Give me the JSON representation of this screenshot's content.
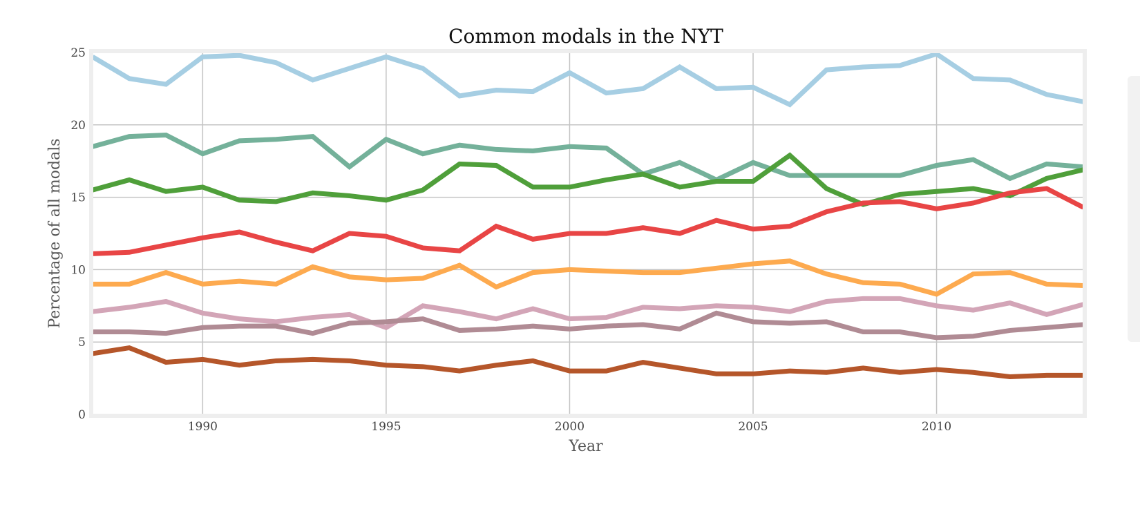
{
  "chart_data": {
    "type": "line",
    "title": "Common modals in the NYT",
    "xlabel": "Year",
    "ylabel": "Percentage of all modals",
    "xlim": [
      1987,
      2014
    ],
    "ylim": [
      0,
      25
    ],
    "xticks": [
      1990,
      1995,
      2000,
      2005,
      2010
    ],
    "yticks": [
      0,
      5,
      10,
      15,
      20,
      25
    ],
    "grid": true,
    "legend": "right (cropped)",
    "x": [
      1987,
      1988,
      1989,
      1990,
      1991,
      1992,
      1993,
      1994,
      1995,
      1996,
      1997,
      1998,
      1999,
      2000,
      2001,
      2002,
      2003,
      2004,
      2005,
      2006,
      2007,
      2008,
      2009,
      2010,
      2011,
      2012,
      2013,
      2014
    ],
    "series": [
      {
        "color": "#a6cee3",
        "values": [
          24.7,
          23.2,
          22.8,
          24.7,
          24.8,
          24.3,
          23.1,
          23.9,
          24.7,
          23.9,
          22.0,
          22.4,
          22.3,
          23.6,
          22.2,
          22.5,
          24.0,
          22.5,
          22.6,
          21.4,
          23.8,
          24.0,
          24.1,
          24.9,
          23.2,
          23.1,
          22.1,
          21.6
        ]
      },
      {
        "color": "#74b19a",
        "values": [
          18.5,
          19.2,
          19.3,
          18.0,
          18.9,
          19.0,
          19.2,
          17.1,
          19.0,
          18.0,
          18.6,
          18.3,
          18.2,
          18.5,
          18.4,
          16.6,
          17.4,
          16.2,
          17.4,
          16.5,
          16.5,
          16.5,
          16.5,
          17.2,
          17.6,
          16.3,
          17.3,
          17.1
        ]
      },
      {
        "color": "#4f9f3a",
        "values": [
          15.5,
          16.2,
          15.4,
          15.7,
          14.8,
          14.7,
          15.3,
          15.1,
          14.8,
          15.5,
          17.3,
          17.2,
          15.7,
          15.7,
          16.2,
          16.6,
          15.7,
          16.1,
          16.1,
          17.9,
          15.6,
          14.5,
          15.2,
          15.4,
          15.6,
          15.1,
          16.3,
          16.9
        ]
      },
      {
        "color": "#e84545",
        "values": [
          11.1,
          11.2,
          11.7,
          12.2,
          12.6,
          11.9,
          11.3,
          12.5,
          12.3,
          11.5,
          11.3,
          13.0,
          12.1,
          12.5,
          12.5,
          12.9,
          12.5,
          13.4,
          12.8,
          13.0,
          14.0,
          14.6,
          14.7,
          14.2,
          14.6,
          15.3,
          15.6,
          14.3
        ]
      },
      {
        "color": "#fdaa4f",
        "values": [
          9.0,
          9.0,
          9.8,
          9.0,
          9.2,
          9.0,
          10.2,
          9.5,
          9.3,
          9.4,
          10.3,
          8.8,
          9.8,
          10.0,
          9.9,
          9.8,
          9.8,
          10.1,
          10.4,
          10.6,
          9.7,
          9.1,
          9.0,
          8.3,
          9.7,
          9.8,
          9.0,
          8.9
        ]
      },
      {
        "color": "#d3a5b7",
        "values": [
          7.1,
          7.4,
          7.8,
          7.0,
          6.6,
          6.4,
          6.7,
          6.9,
          6.0,
          7.5,
          7.1,
          6.6,
          7.3,
          6.6,
          6.7,
          7.4,
          7.3,
          7.5,
          7.4,
          7.1,
          7.8,
          8.0,
          8.0,
          7.5,
          7.2,
          7.7,
          6.9,
          7.6
        ]
      },
      {
        "color": "#b08b94",
        "values": [
          5.7,
          5.7,
          5.6,
          6.0,
          6.1,
          6.1,
          5.6,
          6.3,
          6.4,
          6.6,
          5.8,
          5.9,
          6.1,
          5.9,
          6.1,
          6.2,
          5.9,
          7.0,
          6.4,
          6.3,
          6.4,
          5.7,
          5.7,
          5.3,
          5.4,
          5.8,
          6.0,
          6.2
        ]
      },
      {
        "color": "#b5562a",
        "values": [
          4.2,
          4.6,
          3.6,
          3.8,
          3.4,
          3.7,
          3.8,
          3.7,
          3.4,
          3.3,
          3.0,
          3.4,
          3.7,
          3.0,
          3.0,
          3.6,
          3.2,
          2.8,
          2.8,
          3.0,
          2.9,
          3.2,
          2.9,
          3.1,
          2.9,
          2.6,
          2.7,
          2.7
        ]
      }
    ]
  }
}
